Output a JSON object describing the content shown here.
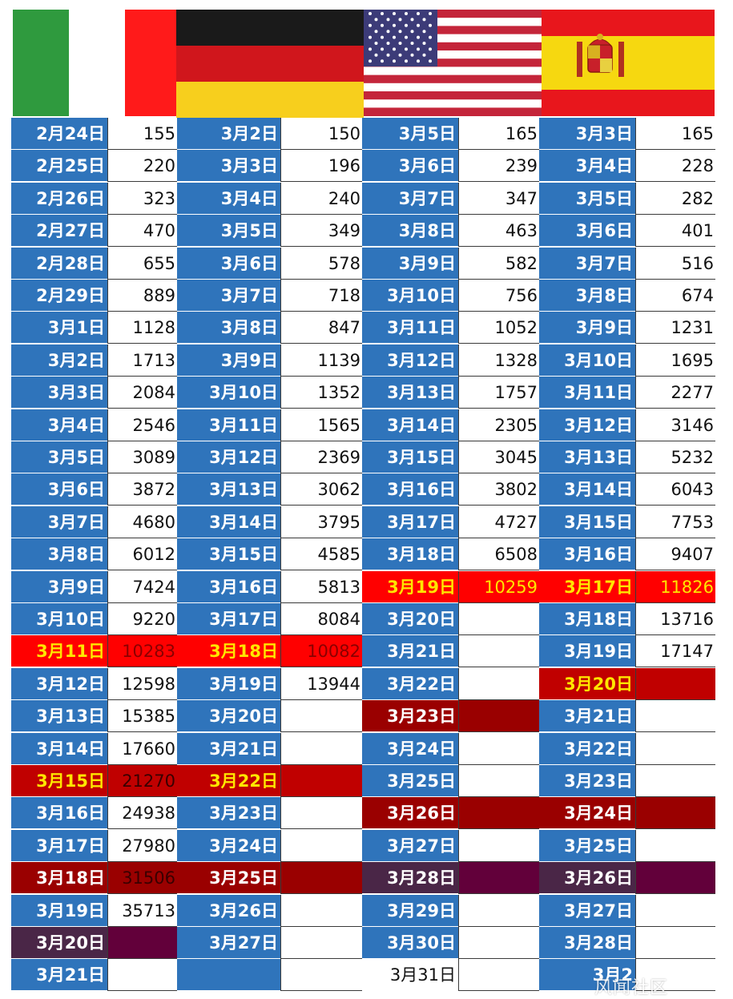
{
  "colors": {
    "blue": "#2f74bb",
    "white": "#ffffff",
    "red": "#ff0000",
    "crimson": "#c00000",
    "maroon": "#9a0000",
    "plum": "#4a2647",
    "wine": "#62003a",
    "yellow_text": "#ffe600",
    "dark_red_text": "#8a0000",
    "red_text": "#d00000"
  },
  "flags": [
    {
      "name": "italy-flag"
    },
    {
      "name": "germany-flag"
    },
    {
      "name": "usa-flag"
    },
    {
      "name": "spain-flag"
    }
  ],
  "columns": [
    {
      "country": "italy",
      "rows": [
        {
          "date": "2月24日",
          "value": "155"
        },
        {
          "date": "2月25日",
          "value": "220"
        },
        {
          "date": "2月26日",
          "value": "323"
        },
        {
          "date": "2月27日",
          "value": "470"
        },
        {
          "date": "2月28日",
          "value": "655"
        },
        {
          "date": "2月29日",
          "value": "889"
        },
        {
          "date": "3月1日",
          "value": "1128"
        },
        {
          "date": "3月2日",
          "value": "1713"
        },
        {
          "date": "3月3日",
          "value": "2084"
        },
        {
          "date": "3月4日",
          "value": "2546"
        },
        {
          "date": "3月5日",
          "value": "3089"
        },
        {
          "date": "3月6日",
          "value": "3872"
        },
        {
          "date": "3月7日",
          "value": "4680"
        },
        {
          "date": "3月8日",
          "value": "6012"
        },
        {
          "date": "3月9日",
          "value": "7424"
        },
        {
          "date": "3月10日",
          "value": "9220"
        },
        {
          "date": "3月11日",
          "value": "10283",
          "style": "red"
        },
        {
          "date": "3月12日",
          "value": "12598"
        },
        {
          "date": "3月13日",
          "value": "15385"
        },
        {
          "date": "3月14日",
          "value": "17660"
        },
        {
          "date": "3月15日",
          "value": "21270",
          "style": "crimson"
        },
        {
          "date": "3月16日",
          "value": "24938"
        },
        {
          "date": "3月17日",
          "value": "27980"
        },
        {
          "date": "3月18日",
          "value": "31506",
          "style": "maroon"
        },
        {
          "date": "3月19日",
          "value": "35713"
        },
        {
          "date": "3月20日",
          "value": "",
          "style": "plum"
        },
        {
          "date": "3月21日",
          "value": ""
        }
      ]
    },
    {
      "country": "germany",
      "rows": [
        {
          "date": "3月2日",
          "value": "150"
        },
        {
          "date": "3月3日",
          "value": "196"
        },
        {
          "date": "3月4日",
          "value": "240"
        },
        {
          "date": "3月5日",
          "value": "349"
        },
        {
          "date": "3月6日",
          "value": "578"
        },
        {
          "date": "3月7日",
          "value": "718"
        },
        {
          "date": "3月8日",
          "value": "847"
        },
        {
          "date": "3月9日",
          "value": "1139"
        },
        {
          "date": "3月10日",
          "value": "1352"
        },
        {
          "date": "3月11日",
          "value": "1565"
        },
        {
          "date": "3月12日",
          "value": "2369"
        },
        {
          "date": "3月13日",
          "value": "3062"
        },
        {
          "date": "3月14日",
          "value": "3795"
        },
        {
          "date": "3月15日",
          "value": "4585"
        },
        {
          "date": "3月16日",
          "value": "5813"
        },
        {
          "date": "3月17日",
          "value": "8084"
        },
        {
          "date": "3月18日",
          "value": "10082",
          "style": "red"
        },
        {
          "date": "3月19日",
          "value": "13944"
        },
        {
          "date": "3月20日",
          "value": ""
        },
        {
          "date": "3月21日",
          "value": ""
        },
        {
          "date": "3月22日",
          "value": "",
          "style": "crimson"
        },
        {
          "date": "3月23日",
          "value": ""
        },
        {
          "date": "3月24日",
          "value": ""
        },
        {
          "date": "3月25日",
          "value": "",
          "style": "maroon"
        },
        {
          "date": "3月26日",
          "value": ""
        },
        {
          "date": "3月27日",
          "value": ""
        },
        {
          "date": "",
          "value": ""
        }
      ]
    },
    {
      "country": "usa",
      "rows": [
        {
          "date": "3月5日",
          "value": "165"
        },
        {
          "date": "3月6日",
          "value": "239"
        },
        {
          "date": "3月7日",
          "value": "347"
        },
        {
          "date": "3月8日",
          "value": "463"
        },
        {
          "date": "3月9日",
          "value": "582"
        },
        {
          "date": "3月10日",
          "value": "756"
        },
        {
          "date": "3月11日",
          "value": "1052"
        },
        {
          "date": "3月12日",
          "value": "1328"
        },
        {
          "date": "3月13日",
          "value": "1757"
        },
        {
          "date": "3月14日",
          "value": "2305"
        },
        {
          "date": "3月15日",
          "value": "3045"
        },
        {
          "date": "3月16日",
          "value": "3802"
        },
        {
          "date": "3月17日",
          "value": "4727"
        },
        {
          "date": "3月18日",
          "value": "6508"
        },
        {
          "date": "3月19日",
          "value": "10259",
          "style": "red"
        },
        {
          "date": "3月20日",
          "value": ""
        },
        {
          "date": "3月21日",
          "value": ""
        },
        {
          "date": "3月22日",
          "value": ""
        },
        {
          "date": "3月23日",
          "value": "",
          "style": "maroon"
        },
        {
          "date": "3月24日",
          "value": ""
        },
        {
          "date": "3月25日",
          "value": ""
        },
        {
          "date": "3月26日",
          "value": "",
          "style": "maroon"
        },
        {
          "date": "3月27日",
          "value": ""
        },
        {
          "date": "3月28日",
          "value": "",
          "style": "plum"
        },
        {
          "date": "3月29日",
          "value": ""
        },
        {
          "date": "3月30日",
          "value": ""
        },
        {
          "date": "3月31日",
          "value": "",
          "style": "plain"
        }
      ]
    },
    {
      "country": "spain",
      "rows": [
        {
          "date": "3月3日",
          "value": "165"
        },
        {
          "date": "3月4日",
          "value": "228"
        },
        {
          "date": "3月5日",
          "value": "282"
        },
        {
          "date": "3月6日",
          "value": "401"
        },
        {
          "date": "3月7日",
          "value": "516"
        },
        {
          "date": "3月8日",
          "value": "674"
        },
        {
          "date": "3月9日",
          "value": "1231"
        },
        {
          "date": "3月10日",
          "value": "1695"
        },
        {
          "date": "3月11日",
          "value": "2277"
        },
        {
          "date": "3月12日",
          "value": "3146"
        },
        {
          "date": "3月13日",
          "value": "5232"
        },
        {
          "date": "3月14日",
          "value": "6043"
        },
        {
          "date": "3月15日",
          "value": "7753"
        },
        {
          "date": "3月16日",
          "value": "9407"
        },
        {
          "date": "3月17日",
          "value": "11826",
          "style": "red"
        },
        {
          "date": "3月18日",
          "value": "13716"
        },
        {
          "date": "3月19日",
          "value": "17147"
        },
        {
          "date": "3月20日",
          "value": "",
          "style": "crimson"
        },
        {
          "date": "3月21日",
          "value": ""
        },
        {
          "date": "3月22日",
          "value": ""
        },
        {
          "date": "3月23日",
          "value": ""
        },
        {
          "date": "3月24日",
          "value": "",
          "style": "maroon"
        },
        {
          "date": "3月25日",
          "value": ""
        },
        {
          "date": "3月26日",
          "value": "",
          "style": "plum"
        },
        {
          "date": "3月27日",
          "value": ""
        },
        {
          "date": "3月28日",
          "value": ""
        },
        {
          "date": "3月2",
          "value": ""
        }
      ]
    }
  ],
  "watermark": "风闻社区"
}
